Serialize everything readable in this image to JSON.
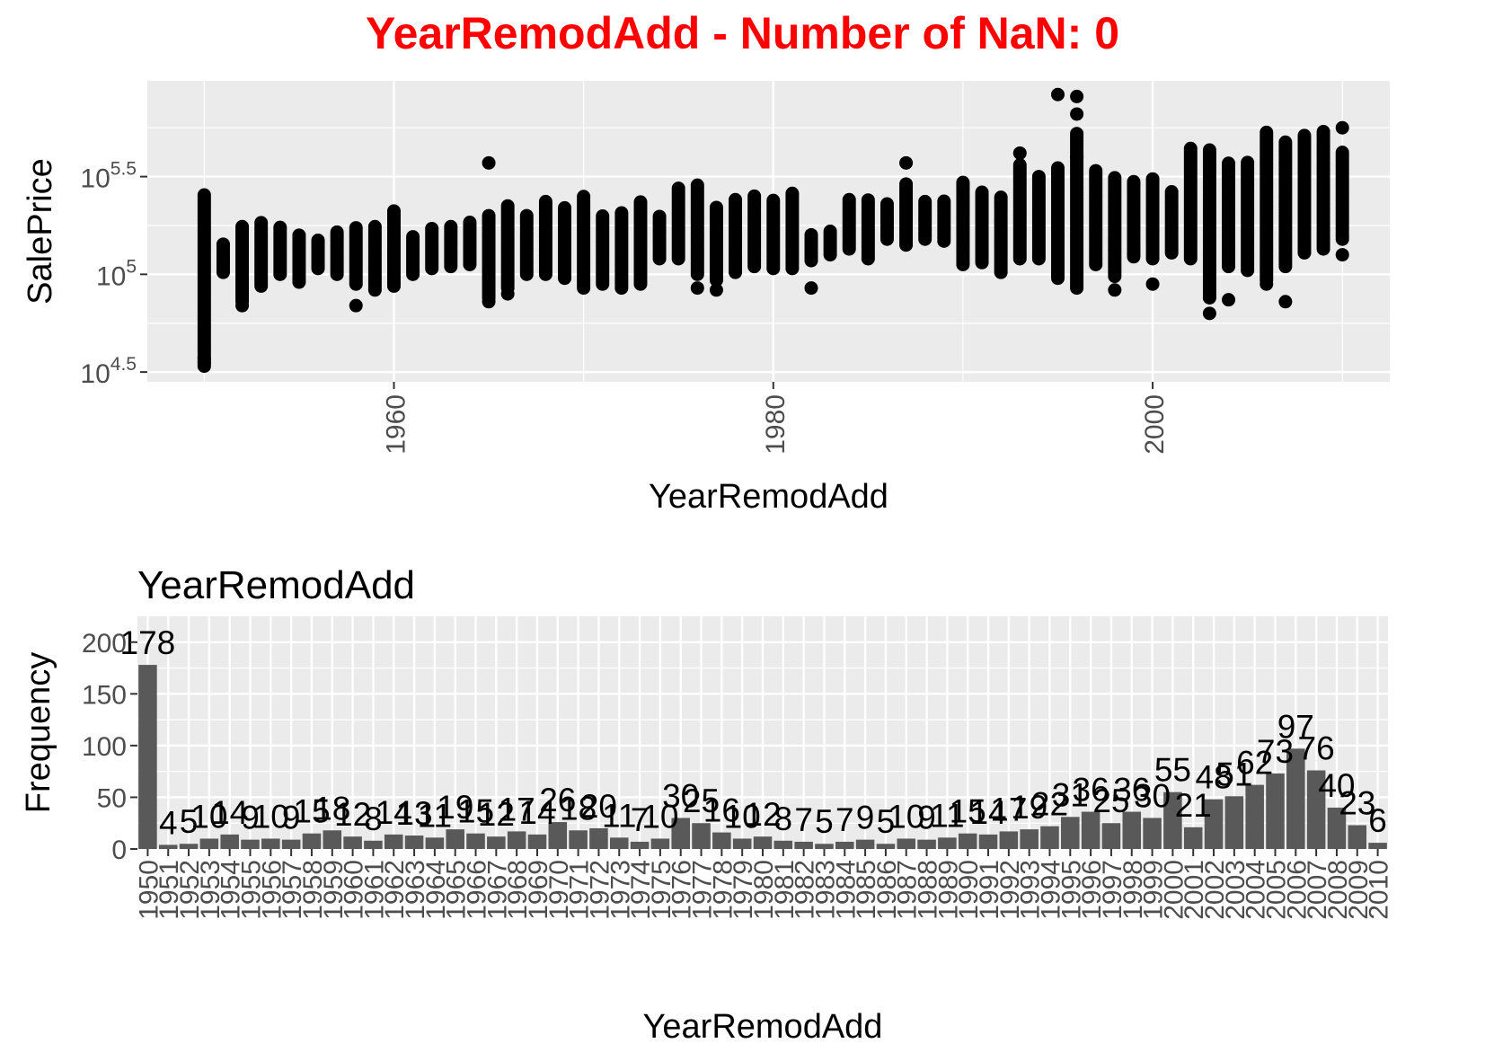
{
  "title": "YearRemodAdd - Number of NaN: 0",
  "title_color": "#ff0000",
  "panel_bg": "#ebebeb",
  "grid_color": "#ffffff",
  "point_color": "#000000",
  "bar_color": "#595959",
  "chart_data": [
    {
      "type": "scatter",
      "xlabel": "YearRemodAdd",
      "ylabel": "SalePrice",
      "x_ticks": [
        "1960",
        "1980",
        "2000"
      ],
      "y_ticks": [
        "5.5",
        "5",
        "4.5"
      ],
      "y_tick_base": "10",
      "y_scale": "log10",
      "xlim": [
        1947,
        2012.5
      ],
      "ylim_log10": [
        4.45,
        5.99
      ],
      "grid": true,
      "ranges": [
        [
          1950,
          4.53,
          5.41
        ],
        [
          1951,
          5.01,
          5.16
        ],
        [
          1952,
          4.86,
          5.25
        ],
        [
          1953,
          4.94,
          5.27
        ],
        [
          1954,
          5.0,
          5.24
        ],
        [
          1955,
          4.96,
          5.2
        ],
        [
          1956,
          5.03,
          5.18
        ],
        [
          1957,
          5.0,
          5.22
        ],
        [
          1958,
          4.95,
          5.24
        ],
        [
          1959,
          4.92,
          5.25
        ],
        [
          1960,
          4.94,
          5.33
        ],
        [
          1961,
          5.0,
          5.2
        ],
        [
          1962,
          5.03,
          5.24
        ],
        [
          1963,
          5.04,
          5.25
        ],
        [
          1964,
          5.05,
          5.27
        ],
        [
          1965,
          4.88,
          5.31
        ],
        [
          1966,
          4.93,
          5.35
        ],
        [
          1967,
          5.0,
          5.3
        ],
        [
          1968,
          5.0,
          5.38
        ],
        [
          1969,
          4.98,
          5.35
        ],
        [
          1970,
          4.93,
          5.4
        ],
        [
          1971,
          4.95,
          5.3
        ],
        [
          1972,
          4.93,
          5.32
        ],
        [
          1973,
          4.95,
          5.37
        ],
        [
          1974,
          5.08,
          5.3
        ],
        [
          1975,
          5.08,
          5.45
        ],
        [
          1976,
          5.0,
          5.46
        ],
        [
          1977,
          4.97,
          5.35
        ],
        [
          1978,
          5.01,
          5.39
        ],
        [
          1979,
          5.04,
          5.4
        ],
        [
          1980,
          5.03,
          5.38
        ],
        [
          1981,
          5.03,
          5.42
        ],
        [
          1982,
          5.07,
          5.21
        ],
        [
          1983,
          5.1,
          5.22
        ],
        [
          1984,
          5.13,
          5.39
        ],
        [
          1985,
          5.08,
          5.39
        ],
        [
          1986,
          5.18,
          5.37
        ],
        [
          1987,
          5.15,
          5.47
        ],
        [
          1988,
          5.18,
          5.38
        ],
        [
          1989,
          5.17,
          5.38
        ],
        [
          1990,
          5.05,
          5.48
        ],
        [
          1991,
          5.06,
          5.42
        ],
        [
          1992,
          5.01,
          5.4
        ],
        [
          1993,
          5.08,
          5.56
        ],
        [
          1994,
          5.08,
          5.5
        ],
        [
          1995,
          4.98,
          5.55
        ],
        [
          1996,
          4.94,
          5.73
        ],
        [
          1997,
          5.05,
          5.53
        ],
        [
          1998,
          4.99,
          5.5
        ],
        [
          1999,
          5.09,
          5.48
        ],
        [
          2000,
          5.08,
          5.49
        ],
        [
          2001,
          5.11,
          5.43
        ],
        [
          2002,
          5.08,
          5.65
        ],
        [
          2003,
          4.88,
          5.64
        ],
        [
          2004,
          5.04,
          5.57
        ],
        [
          2005,
          5.02,
          5.58
        ],
        [
          2006,
          4.97,
          5.73
        ],
        [
          2007,
          5.04,
          5.68
        ],
        [
          2008,
          5.11,
          5.71
        ],
        [
          2009,
          5.13,
          5.73
        ],
        [
          2010,
          5.18,
          5.63
        ]
      ],
      "outliers": [
        [
          1950,
          4.55
        ],
        [
          1950,
          4.57
        ],
        [
          1952,
          4.84
        ],
        [
          1958,
          4.84
        ],
        [
          1965,
          5.57
        ],
        [
          1965,
          4.86
        ],
        [
          1966,
          4.9
        ],
        [
          1976,
          4.93
        ],
        [
          1977,
          4.92
        ],
        [
          1982,
          4.93
        ],
        [
          1987,
          5.57
        ],
        [
          1993,
          5.62
        ],
        [
          1995,
          5.92
        ],
        [
          1996,
          5.91
        ],
        [
          1996,
          5.82
        ],
        [
          1996,
          5.6
        ],
        [
          1996,
          4.93
        ],
        [
          1998,
          4.92
        ],
        [
          2000,
          4.95
        ],
        [
          2003,
          4.8
        ],
        [
          2004,
          4.87
        ],
        [
          2006,
          4.95
        ],
        [
          2007,
          4.86
        ],
        [
          2010,
          5.75
        ],
        [
          2010,
          5.1
        ]
      ]
    },
    {
      "type": "bar",
      "title": "YearRemodAdd",
      "xlabel": "YearRemodAdd",
      "ylabel": "Frequency",
      "y_ticks": [
        "0",
        "50",
        "100",
        "150",
        "200"
      ],
      "ylim": [
        0,
        225
      ],
      "grid": true,
      "categories": [
        "1950",
        "1951",
        "1952",
        "1953",
        "1954",
        "1955",
        "1956",
        "1957",
        "1958",
        "1959",
        "1960",
        "1961",
        "1962",
        "1963",
        "1964",
        "1965",
        "1966",
        "1967",
        "1968",
        "1969",
        "1970",
        "1971",
        "1972",
        "1973",
        "1974",
        "1975",
        "1976",
        "1977",
        "1978",
        "1979",
        "1980",
        "1981",
        "1982",
        "1983",
        "1984",
        "1985",
        "1986",
        "1987",
        "1988",
        "1989",
        "1990",
        "1991",
        "1992",
        "1993",
        "1994",
        "1995",
        "1996",
        "1997",
        "1998",
        "1999",
        "2000",
        "2001",
        "2002",
        "2003",
        "2004",
        "2005",
        "2006",
        "2007",
        "2008",
        "2009",
        "2010"
      ],
      "values": [
        178,
        4,
        5,
        10,
        14,
        9,
        10,
        9,
        15,
        18,
        12,
        8,
        14,
        13,
        11,
        19,
        15,
        12,
        17,
        14,
        26,
        18,
        20,
        11,
        7,
        10,
        30,
        25,
        16,
        10,
        12,
        8,
        7,
        5,
        7,
        9,
        5,
        10,
        9,
        11,
        15,
        14,
        17,
        19,
        22,
        31,
        36,
        25,
        36,
        30,
        55,
        21,
        48,
        51,
        62,
        73,
        97,
        76,
        40,
        23,
        6
      ],
      "labels": [
        "178",
        "4",
        "5",
        "10",
        "14",
        "9",
        "10",
        "9",
        "15",
        "18",
        "12",
        "8",
        "14",
        "13",
        "11",
        "19",
        "15",
        "12",
        "17",
        "14",
        "26",
        "18",
        "20",
        "11",
        "7",
        "10",
        "30",
        "25",
        "16",
        "10",
        "12",
        "8",
        "7",
        "5",
        "7",
        "9",
        "5",
        "10",
        "9",
        "11",
        "15",
        "14",
        "17",
        "19",
        "22",
        "31",
        "36",
        "25",
        "36",
        "30",
        "55",
        "21",
        "48",
        "51",
        "62",
        "73",
        "97",
        "76",
        "40",
        "23",
        "6"
      ]
    }
  ]
}
